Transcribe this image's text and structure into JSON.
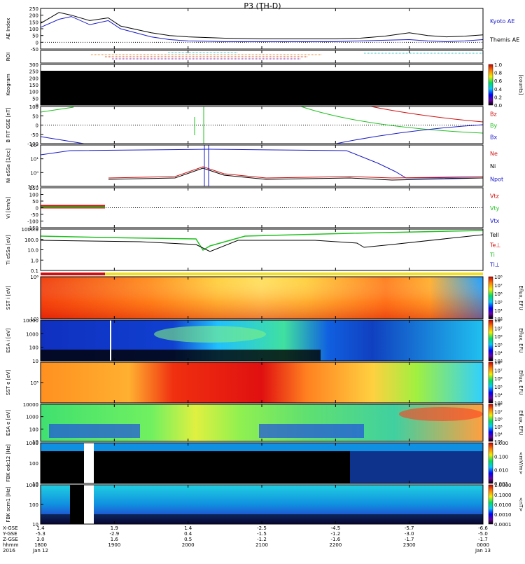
{
  "title": "P3 (TH-D)",
  "colors": {
    "blue": "#1a1ac8",
    "red": "#d01010",
    "green": "#20c020",
    "black": "#000000"
  },
  "chart_data": [
    {
      "id": "ae",
      "type": "line",
      "ylabel": "AE Index",
      "yticks": [
        "250",
        "200",
        "150",
        "100",
        "50",
        "0",
        "-50"
      ],
      "ylim": [
        -50,
        250
      ],
      "legend": [
        {
          "label": "Kyoto AE",
          "color": "#1a1ac8"
        },
        {
          "label": "Themis AE",
          "color": "#000000"
        }
      ],
      "series": [
        {
          "name": "Kyoto AE",
          "color": "#1a1ac8",
          "x": [
            1800,
            1815,
            1825,
            1840,
            1855,
            1905,
            1930,
            1945,
            2000,
            2030,
            2100,
            2130,
            2200,
            2220,
            2240,
            2300,
            2315,
            2330,
            2345,
            2400
          ],
          "values": [
            110,
            170,
            190,
            130,
            160,
            100,
            40,
            20,
            10,
            5,
            5,
            5,
            5,
            10,
            15,
            20,
            10,
            5,
            10,
            20
          ]
        },
        {
          "name": "Themis AE",
          "color": "#000000",
          "x": [
            1800,
            1815,
            1825,
            1840,
            1855,
            1905,
            1930,
            1945,
            2000,
            2030,
            2100,
            2130,
            2200,
            2220,
            2240,
            2300,
            2315,
            2330,
            2345,
            2400
          ],
          "values": [
            140,
            220,
            200,
            160,
            180,
            120,
            70,
            50,
            40,
            30,
            25,
            25,
            25,
            30,
            45,
            70,
            50,
            40,
            45,
            55
          ]
        }
      ]
    },
    {
      "id": "roi",
      "type": "line",
      "ylabel": "ROI"
    },
    {
      "id": "keogram",
      "type": "heatmap",
      "ylabel": "Keogram",
      "yticks": [
        "300",
        "250",
        "200",
        "150",
        "100",
        "50",
        "0"
      ],
      "colorbar": {
        "label": "[counts]",
        "ticks": [
          "1.0",
          "0.8",
          "0.6",
          "0.4",
          "0.2",
          "0.0"
        ]
      }
    },
    {
      "id": "bfield",
      "type": "line",
      "ylabel": "B FIT GSE [nT]",
      "yticks": [
        "100",
        "50",
        "0",
        "-50",
        "-100"
      ],
      "legend": [
        {
          "label": "Bz",
          "color": "#d01010"
        },
        {
          "label": "By",
          "color": "#20c020"
        },
        {
          "label": "Bx",
          "color": "#1a1ac8"
        }
      ]
    },
    {
      "id": "density",
      "type": "line",
      "ylabel": "Ni eSSa [1/cc]",
      "yticks": [
        "10²",
        "10¹",
        "10⁰",
        "10⁻¹"
      ],
      "legend": [
        {
          "label": "Ne",
          "color": "#d01010"
        },
        {
          "label": "Ni",
          "color": "#000000"
        },
        {
          "label": "Npot",
          "color": "#1a1ac8"
        }
      ]
    },
    {
      "id": "velocity",
      "type": "line",
      "ylabel": "Vi [km/s]",
      "yticks": [
        "150",
        "100",
        "50",
        "0",
        "-50",
        "-100",
        "-150"
      ],
      "legend": [
        {
          "label": "Vtz",
          "color": "#d01010"
        },
        {
          "label": "Vty",
          "color": "#20c020"
        },
        {
          "label": "Vtx",
          "color": "#1a1ac8"
        }
      ]
    },
    {
      "id": "temp",
      "type": "line",
      "ylabel": "Ti eSSa [eV]",
      "yticks": [
        "1000.0",
        "100.0",
        "10.0",
        "1.0",
        "0.1"
      ],
      "legend": [
        {
          "label": "Tell",
          "color": "#000000"
        },
        {
          "label": "Te⊥",
          "color": "#d01010"
        },
        {
          "label": "Ti",
          "color": "#20c020"
        },
        {
          "label": "Ti⊥",
          "color": "#1a1ac8"
        }
      ]
    },
    {
      "id": "sst_i",
      "type": "heatmap",
      "ylabel": "SST i [eV]",
      "yticks": [
        "10⁶",
        "10⁵"
      ],
      "colorbar": {
        "label": "Eflux, EFU",
        "ticks": [
          "10⁸",
          "10⁷",
          "10⁶",
          "10⁵",
          "10⁴",
          "10³"
        ]
      }
    },
    {
      "id": "esa_i",
      "type": "heatmap",
      "ylabel": "ESA i [eV]",
      "yticks": [
        "10000",
        "1000",
        "100",
        "10"
      ],
      "colorbar": {
        "label": "Eflux, EFU",
        "ticks": [
          "10⁸",
          "10⁷",
          "10⁶",
          "10⁵",
          "10⁴",
          "10³"
        ]
      }
    },
    {
      "id": "sst_e",
      "type": "heatmap",
      "ylabel": "SST e [eV]",
      "yticks": [
        "10⁵"
      ],
      "colorbar": {
        "label": "Eflux, EFU",
        "ticks": [
          "10⁸",
          "10⁷",
          "10⁶",
          "10⁵",
          "10⁴",
          "10³"
        ]
      }
    },
    {
      "id": "esa_e",
      "type": "heatmap",
      "ylabel": "ESA e [eV]",
      "yticks": [
        "10000",
        "1000",
        "100",
        "10"
      ],
      "colorbar": {
        "label": "Eflux, EFU",
        "ticks": [
          "10⁸",
          "10⁷",
          "10⁶",
          "10⁵",
          "10⁴",
          "10³"
        ]
      }
    },
    {
      "id": "fbk_e",
      "type": "heatmap",
      "ylabel": "FBK edc12 [Hz]",
      "yticks": [
        "1000",
        "100",
        "10"
      ],
      "colorbar": {
        "label": "<mV/m>",
        "ticks": [
          "1.000",
          "0.100",
          "0.010",
          "0.001"
        ]
      }
    },
    {
      "id": "fbk_b",
      "type": "heatmap",
      "ylabel": "FBK scm1 [Hz]",
      "yticks": [
        "1000",
        "100",
        "10"
      ],
      "colorbar": {
        "label": "<nT>",
        "ticks": [
          "1.0000",
          "0.1000",
          "0.0100",
          "0.0010",
          "0.0001"
        ]
      }
    }
  ],
  "xaxis": {
    "row_labels": [
      "X-GSE",
      "Y-GSE",
      "Z-GSE",
      "hhmm",
      "2016"
    ],
    "columns": [
      [
        "1.4",
        "-5.3",
        "3.0",
        "1800",
        "Jan 12"
      ],
      [
        "1.9",
        "-2.9",
        "1.6",
        "1900",
        ""
      ],
      [
        "1.4",
        "0.4",
        "0.5",
        "2000",
        ""
      ],
      [
        "-2.5",
        "-1.5",
        "-1.2",
        "2100",
        ""
      ],
      [
        "-4.5",
        "-1.2",
        "-1.6",
        "2200",
        ""
      ],
      [
        "-5.7",
        "-3.0",
        "-1.7",
        "2300",
        ""
      ],
      [
        "-6.6",
        "-5.0",
        "-1.7",
        "0000",
        "Jan 13"
      ]
    ]
  }
}
